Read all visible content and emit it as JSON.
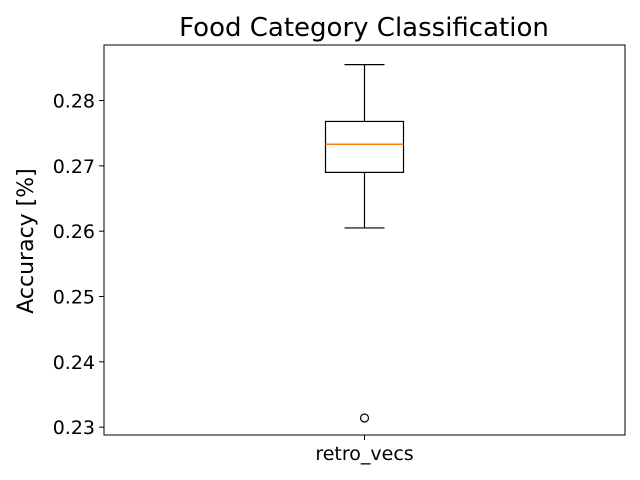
{
  "chart_data": {
    "type": "box",
    "title": "Food Category Classification",
    "xlabel": "",
    "ylabel": "Accuracy [%]",
    "categories": [
      "retro_vecs"
    ],
    "boxes": [
      {
        "category": "retro_vecs",
        "whisker_low": 0.2605,
        "q1": 0.269,
        "median": 0.2733,
        "q3": 0.2768,
        "whisker_high": 0.2855,
        "outliers": [
          0.2314
        ]
      }
    ],
    "ylim": [
      0.2288,
      0.2885
    ],
    "yticks": [
      0.23,
      0.24,
      0.25,
      0.26,
      0.27,
      0.28
    ],
    "ytick_labels": [
      "0.23",
      "0.24",
      "0.25",
      "0.26",
      "0.27",
      "0.28"
    ],
    "grid": false,
    "colors": {
      "box": "#000000",
      "median": "#ff7f0e",
      "frame": "#000000"
    }
  }
}
